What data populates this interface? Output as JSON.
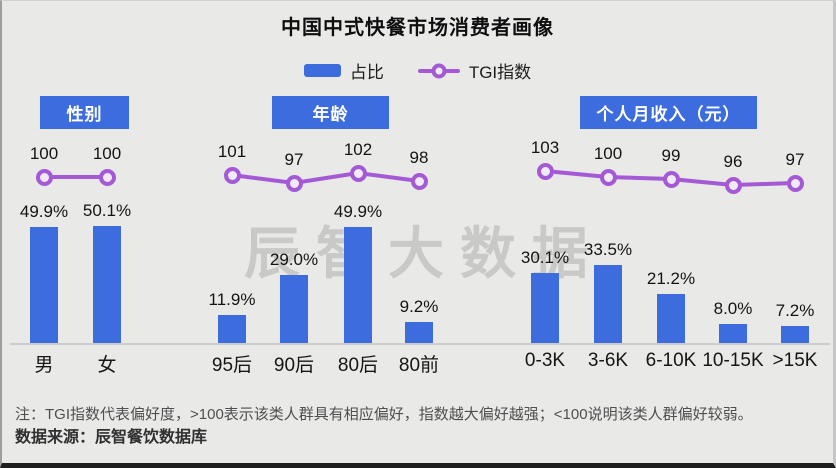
{
  "title": "中国中式快餐市场消费者画像",
  "legend": {
    "bar_label": "占比",
    "line_label": "TGI指数"
  },
  "colors": {
    "bar_blue": "#3D6CDF",
    "tgi_purple": "#A55AD5",
    "background": "#E9E9E8"
  },
  "watermark": "辰智大数据",
  "chart_data": {
    "type": "bar",
    "subtype": "grouped bar chart with TGI line overlay (combo)",
    "bar_series_name": "占比",
    "bar_unit": "%",
    "line_series_name": "TGI指数",
    "legend_position": "top-center",
    "grid": false,
    "groups": [
      {
        "header": "性别",
        "categories": [
          "男",
          "女"
        ],
        "bar_values": [
          49.9,
          50.1
        ],
        "tgi_values": [
          100,
          100
        ]
      },
      {
        "header": "年龄",
        "categories": [
          "95后",
          "90后",
          "80后",
          "80前"
        ],
        "bar_values": [
          11.9,
          29.0,
          49.9,
          9.2
        ],
        "tgi_values": [
          101,
          97,
          102,
          98
        ]
      },
      {
        "header": "个人月收入（元）",
        "categories": [
          "0-3K",
          "3-6K",
          "6-10K",
          "10-15K",
          ">15K"
        ],
        "bar_values": [
          30.1,
          33.5,
          21.2,
          8.0,
          7.2
        ],
        "tgi_values": [
          103,
          100,
          99,
          96,
          97
        ]
      }
    ]
  },
  "notes": {
    "tgi_note": "注：TGI指数代表偏好度，>100表示该类人群具有相应偏好，指数越大偏好越强；<100说明该类人群偏好较弱。",
    "source": "数据来源：辰智餐饮数据库"
  }
}
